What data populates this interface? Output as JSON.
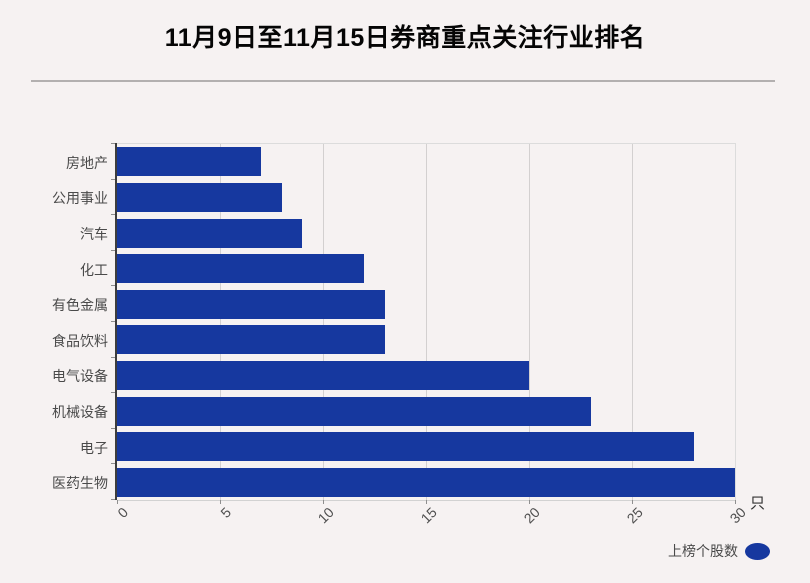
{
  "chart_data": {
    "type": "bar",
    "orientation": "horizontal",
    "title": "11月9日至11月15日券商重点关注行业排名",
    "categories": [
      "房地产",
      "公用事业",
      "汽车",
      "化工",
      "有色金属",
      "食品饮料",
      "电气设备",
      "机械设备",
      "电子",
      "医药生物"
    ],
    "values": [
      7,
      8,
      9,
      12,
      13,
      13,
      20,
      23,
      28,
      30
    ],
    "series": [
      {
        "name": "上榜个股数",
        "values": [
          7,
          8,
          9,
          12,
          13,
          13,
          20,
          23,
          28,
          30
        ]
      }
    ],
    "x_ticks": [
      0,
      5,
      10,
      15,
      20,
      25,
      30
    ],
    "xlim": [
      0,
      30
    ],
    "x_unit": "只",
    "tick_rotation_deg": 45,
    "grid": true,
    "legend": {
      "label": "上榜个股数",
      "marker": "ellipse",
      "position": "bottom-right"
    }
  },
  "colors": {
    "background": "#F6F2F2",
    "bar": "#16389F",
    "divider": "#B3B0B0",
    "axis_spine": "#3D3D3D",
    "gridline": "#D3D0D0",
    "label_text": "#4A4A4A",
    "title_text": "#050505"
  }
}
